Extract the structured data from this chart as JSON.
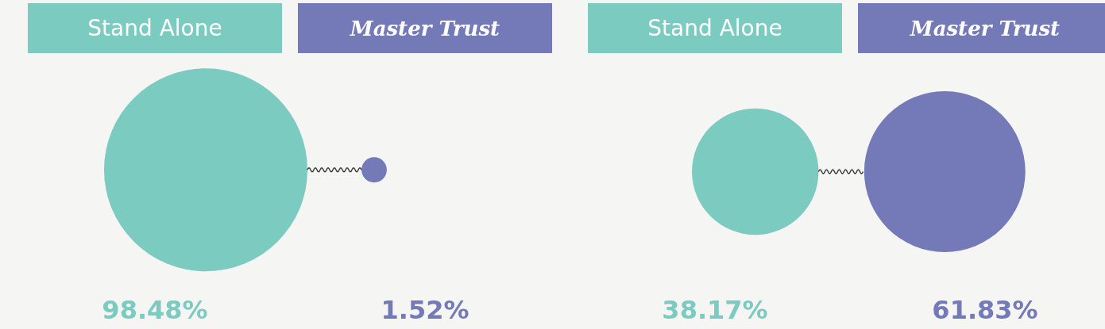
{
  "chart_data": [
    {
      "type": "other",
      "categories": [
        "Stand Alone",
        "Master Trust"
      ],
      "values": [
        98.48,
        1.52
      ],
      "colors": [
        "#7ccbc1",
        "#7479b8"
      ],
      "value_labels": [
        "98.48%",
        "1.52%"
      ]
    },
    {
      "type": "other",
      "categories": [
        "Stand Alone",
        "Master Trust"
      ],
      "values": [
        38.17,
        61.83
      ],
      "colors": [
        "#7ccbc1",
        "#7479b8"
      ],
      "value_labels": [
        "38.17%",
        "61.83%"
      ]
    }
  ]
}
